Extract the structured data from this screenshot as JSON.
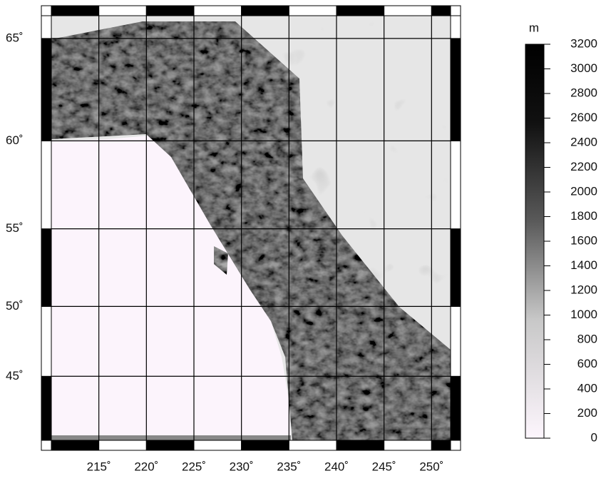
{
  "map": {
    "xlim": [
      210,
      252
    ],
    "ylim": [
      40,
      66
    ],
    "lon_ticks": [
      {
        "value": 215,
        "label": "215˚"
      },
      {
        "value": 220,
        "label": "220˚"
      },
      {
        "value": 225,
        "label": "225˚"
      },
      {
        "value": 230,
        "label": "230˚"
      },
      {
        "value": 235,
        "label": "235˚"
      },
      {
        "value": 240,
        "label": "240˚"
      },
      {
        "value": 245,
        "label": "245˚"
      },
      {
        "value": 250,
        "label": "250˚"
      }
    ],
    "lat_ticks": [
      {
        "value": 45,
        "label": "45˚"
      },
      {
        "value": 50,
        "label": "50˚"
      },
      {
        "value": 55,
        "label": "55˚"
      },
      {
        "value": 60,
        "label": "60˚"
      },
      {
        "value": 65,
        "label": "65˚"
      }
    ]
  },
  "colorbar": {
    "unit": "m",
    "lim": [
      0,
      3200
    ],
    "ticks": [
      0,
      200,
      400,
      600,
      800,
      1000,
      1200,
      1400,
      1600,
      1800,
      2000,
      2200,
      2400,
      2600,
      2800,
      3000,
      3200
    ]
  }
}
